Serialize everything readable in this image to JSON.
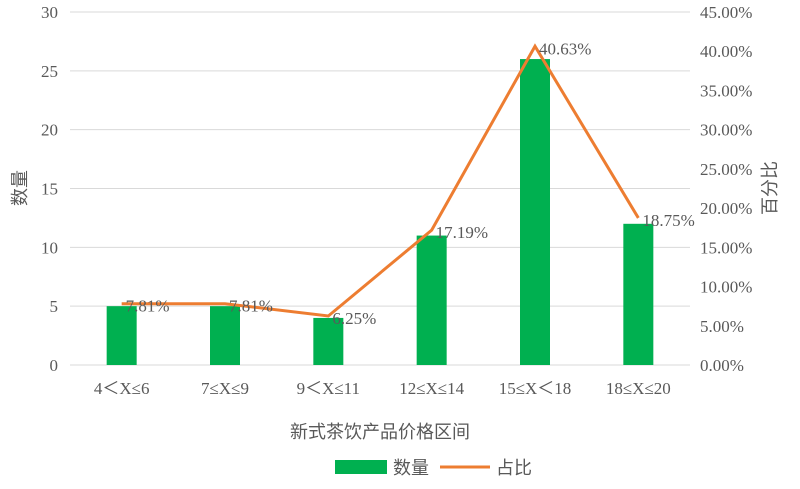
{
  "chart_data": {
    "type": "bar+line",
    "xlabel": "新式茶饮产品价格区间",
    "ylabel": "数量",
    "y2label": "百分比",
    "categories": [
      "4＜X≤6",
      "7≤X≤9",
      "9＜X≤11",
      "12≤X≤14",
      "15≤X＜18",
      "18≤X≤20"
    ],
    "ylim": [
      0,
      30
    ],
    "yticks": [
      0,
      5,
      10,
      15,
      20,
      25,
      30
    ],
    "y2lim": [
      0,
      45
    ],
    "y2ticks": [
      "0.00%",
      "5.00%",
      "10.00%",
      "15.00%",
      "20.00%",
      "25.00%",
      "30.00%",
      "35.00%",
      "40.00%",
      "45.00%"
    ],
    "grid": true,
    "legend_position": "bottom",
    "series": [
      {
        "name": "数量",
        "type": "bar",
        "color": "#00B050",
        "values": [
          5,
          5,
          4,
          11,
          26,
          12
        ]
      },
      {
        "name": "占比",
        "type": "line",
        "color": "#ED7D31",
        "values": [
          7.81,
          7.81,
          6.25,
          17.19,
          40.63,
          18.75
        ],
        "labels": [
          "7.81%",
          "7.81%",
          "6.25%",
          "17.19%",
          "40.63%",
          "18.75%"
        ]
      }
    ]
  }
}
